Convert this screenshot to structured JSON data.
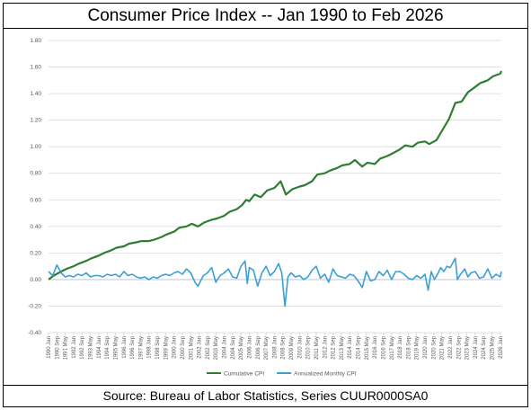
{
  "title": "Consumer Price Index -- Jan 1990 to Feb 2026",
  "source": "Source: Bureau of Labor Statistics, Series CUUR0000SA0",
  "colors": {
    "cumulative": "#2e7d32",
    "monthly": "#3a9fd6",
    "grid": "#d9d9d9",
    "axis": "#bfbfbf"
  },
  "chart_data": {
    "type": "line",
    "title": "Consumer Price Index -- Jan 1990 to Feb 2026",
    "legend_position": "bottom",
    "grid": true,
    "ylim": [
      -0.4,
      1.8
    ],
    "y_ticks": [
      "-0.40",
      "-0.20",
      "0.00",
      "0.20",
      "0.40",
      "0.60",
      "0.80",
      "1.00",
      "1.20",
      "1.40",
      "1.60",
      "1.80"
    ],
    "x_range": [
      "1990-01",
      "2026-02"
    ],
    "x_tick_labels": [
      "1990 Jan",
      "1990 Sep",
      "1991 May",
      "1992 Jan",
      "1992 Sep",
      "1993 May",
      "1994 Jan",
      "1994 Sep",
      "1995 May",
      "1996 Jan",
      "1996 Sep",
      "1997 May",
      "1998 Jan",
      "1998 Sep",
      "1999 May",
      "2000 Jan",
      "2000 Sep",
      "2001 May",
      "2002 Jan",
      "2002 Sep",
      "2003 May",
      "2004 Jan",
      "2004 Sep",
      "2005 May",
      "2006 Jan",
      "2006 Sep",
      "2007 May",
      "2008 Jan",
      "2008 Sep",
      "2009 May",
      "2010 Jan",
      "2010 Sep",
      "2011 May",
      "2012 Jan",
      "2012 Sep",
      "2013 May",
      "2014 Jan",
      "2014 Sep",
      "2015 May",
      "2016 Jan",
      "2016 Sep",
      "2017 May",
      "2018 Jan",
      "2018 Sep",
      "2019 May",
      "2020 Jan",
      "2020 Sep",
      "2021 May",
      "2022 Jan",
      "2022 Sep",
      "2023 May",
      "2024 Jan",
      "2024 Sep",
      "2025 May",
      "2026 Jan"
    ],
    "series": [
      {
        "name": "Cumulative CPI",
        "color": "#2e7d32",
        "points": [
          [
            "1990-01",
            0.0
          ],
          [
            "1990-06",
            0.03
          ],
          [
            "1991-01",
            0.06
          ],
          [
            "1991-06",
            0.08
          ],
          [
            "1992-01",
            0.1
          ],
          [
            "1992-06",
            0.12
          ],
          [
            "1993-01",
            0.14
          ],
          [
            "1993-06",
            0.16
          ],
          [
            "1994-01",
            0.18
          ],
          [
            "1994-06",
            0.2
          ],
          [
            "1995-01",
            0.22
          ],
          [
            "1995-06",
            0.24
          ],
          [
            "1996-01",
            0.25
          ],
          [
            "1996-06",
            0.27
          ],
          [
            "1997-01",
            0.28
          ],
          [
            "1997-06",
            0.29
          ],
          [
            "1998-01",
            0.29
          ],
          [
            "1998-06",
            0.3
          ],
          [
            "1999-01",
            0.32
          ],
          [
            "1999-06",
            0.34
          ],
          [
            "2000-01",
            0.36
          ],
          [
            "2000-06",
            0.39
          ],
          [
            "2001-01",
            0.4
          ],
          [
            "2001-06",
            0.42
          ],
          [
            "2001-12",
            0.4
          ],
          [
            "2002-06",
            0.43
          ],
          [
            "2003-01",
            0.45
          ],
          [
            "2003-06",
            0.46
          ],
          [
            "2004-01",
            0.48
          ],
          [
            "2004-06",
            0.51
          ],
          [
            "2005-01",
            0.53
          ],
          [
            "2005-06",
            0.56
          ],
          [
            "2005-10",
            0.6
          ],
          [
            "2006-01",
            0.59
          ],
          [
            "2006-06",
            0.64
          ],
          [
            "2006-12",
            0.62
          ],
          [
            "2007-06",
            0.67
          ],
          [
            "2008-01",
            0.69
          ],
          [
            "2008-07",
            0.74
          ],
          [
            "2008-12",
            0.64
          ],
          [
            "2009-06",
            0.68
          ],
          [
            "2010-01",
            0.7
          ],
          [
            "2010-06",
            0.71
          ],
          [
            "2011-01",
            0.74
          ],
          [
            "2011-06",
            0.79
          ],
          [
            "2012-01",
            0.8
          ],
          [
            "2012-06",
            0.82
          ],
          [
            "2013-01",
            0.84
          ],
          [
            "2013-06",
            0.86
          ],
          [
            "2014-01",
            0.87
          ],
          [
            "2014-06",
            0.9
          ],
          [
            "2015-01",
            0.85
          ],
          [
            "2015-06",
            0.88
          ],
          [
            "2016-01",
            0.87
          ],
          [
            "2016-06",
            0.91
          ],
          [
            "2017-01",
            0.93
          ],
          [
            "2017-06",
            0.95
          ],
          [
            "2018-01",
            0.98
          ],
          [
            "2018-06",
            1.01
          ],
          [
            "2019-01",
            1.0
          ],
          [
            "2019-06",
            1.03
          ],
          [
            "2020-01",
            1.04
          ],
          [
            "2020-05",
            1.02
          ],
          [
            "2020-12",
            1.05
          ],
          [
            "2021-06",
            1.13
          ],
          [
            "2021-12",
            1.21
          ],
          [
            "2022-06",
            1.33
          ],
          [
            "2022-12",
            1.34
          ],
          [
            "2023-06",
            1.41
          ],
          [
            "2024-01",
            1.45
          ],
          [
            "2024-06",
            1.48
          ],
          [
            "2025-01",
            1.5
          ],
          [
            "2025-06",
            1.53
          ],
          [
            "2026-01",
            1.55
          ],
          [
            "2026-02",
            1.57
          ]
        ]
      },
      {
        "name": "Annualized Monthly CPI",
        "color": "#3a9fd6",
        "points": [
          [
            "1990-01",
            0.06
          ],
          [
            "1990-05",
            0.03
          ],
          [
            "1990-09",
            0.11
          ],
          [
            "1991-01",
            0.05
          ],
          [
            "1991-05",
            0.02
          ],
          [
            "1991-09",
            0.03
          ],
          [
            "1992-01",
            0.02
          ],
          [
            "1992-05",
            0.04
          ],
          [
            "1992-09",
            0.03
          ],
          [
            "1993-01",
            0.05
          ],
          [
            "1993-05",
            0.02
          ],
          [
            "1993-09",
            0.03
          ],
          [
            "1994-01",
            0.03
          ],
          [
            "1994-05",
            0.02
          ],
          [
            "1994-09",
            0.04
          ],
          [
            "1995-01",
            0.03
          ],
          [
            "1995-05",
            0.04
          ],
          [
            "1995-09",
            0.02
          ],
          [
            "1996-01",
            0.06
          ],
          [
            "1996-05",
            0.03
          ],
          [
            "1996-09",
            0.04
          ],
          [
            "1997-01",
            0.02
          ],
          [
            "1997-05",
            0.01
          ],
          [
            "1997-09",
            0.02
          ],
          [
            "1998-01",
            0.0
          ],
          [
            "1998-05",
            0.02
          ],
          [
            "1998-09",
            0.01
          ],
          [
            "1999-01",
            0.03
          ],
          [
            "1999-05",
            0.04
          ],
          [
            "1999-09",
            0.03
          ],
          [
            "2000-01",
            0.05
          ],
          [
            "2000-05",
            0.06
          ],
          [
            "2000-09",
            0.04
          ],
          [
            "2001-01",
            0.08
          ],
          [
            "2001-05",
            0.05
          ],
          [
            "2001-09",
            -0.02
          ],
          [
            "2001-12",
            -0.05
          ],
          [
            "2002-05",
            0.03
          ],
          [
            "2002-09",
            0.05
          ],
          [
            "2003-01",
            0.09
          ],
          [
            "2003-05",
            -0.02
          ],
          [
            "2003-09",
            0.03
          ],
          [
            "2004-01",
            0.05
          ],
          [
            "2004-05",
            0.08
          ],
          [
            "2004-09",
            0.02
          ],
          [
            "2005-01",
            0.01
          ],
          [
            "2005-05",
            0.1
          ],
          [
            "2005-09",
            0.14
          ],
          [
            "2005-11",
            -0.03
          ],
          [
            "2006-01",
            0.09
          ],
          [
            "2006-05",
            0.07
          ],
          [
            "2006-09",
            -0.05
          ],
          [
            "2007-01",
            0.05
          ],
          [
            "2007-05",
            0.1
          ],
          [
            "2007-09",
            0.03
          ],
          [
            "2008-01",
            0.06
          ],
          [
            "2008-05",
            0.12
          ],
          [
            "2008-08",
            0.05
          ],
          [
            "2008-11",
            -0.2
          ],
          [
            "2009-02",
            0.02
          ],
          [
            "2009-05",
            0.05
          ],
          [
            "2009-09",
            0.02
          ],
          [
            "2010-01",
            0.03
          ],
          [
            "2010-05",
            0.0
          ],
          [
            "2010-09",
            0.02
          ],
          [
            "2011-01",
            0.07
          ],
          [
            "2011-05",
            0.1
          ],
          [
            "2011-09",
            0.01
          ],
          [
            "2012-01",
            0.04
          ],
          [
            "2012-05",
            -0.02
          ],
          [
            "2012-09",
            0.08
          ],
          [
            "2013-01",
            0.03
          ],
          [
            "2013-05",
            0.02
          ],
          [
            "2013-09",
            0.01
          ],
          [
            "2014-01",
            0.04
          ],
          [
            "2014-05",
            0.03
          ],
          [
            "2014-09",
            -0.01
          ],
          [
            "2015-01",
            -0.06
          ],
          [
            "2015-05",
            0.06
          ],
          [
            "2015-09",
            -0.01
          ],
          [
            "2016-01",
            0.0
          ],
          [
            "2016-05",
            0.06
          ],
          [
            "2016-09",
            0.03
          ],
          [
            "2017-01",
            0.07
          ],
          [
            "2017-05",
            0.0
          ],
          [
            "2017-09",
            0.06
          ],
          [
            "2018-01",
            0.06
          ],
          [
            "2018-05",
            0.04
          ],
          [
            "2018-09",
            0.01
          ],
          [
            "2019-01",
            0.0
          ],
          [
            "2019-05",
            0.03
          ],
          [
            "2019-09",
            0.01
          ],
          [
            "2020-01",
            0.04
          ],
          [
            "2020-04",
            -0.08
          ],
          [
            "2020-07",
            0.06
          ],
          [
            "2020-10",
            0.0
          ],
          [
            "2021-01",
            0.04
          ],
          [
            "2021-04",
            0.09
          ],
          [
            "2021-07",
            0.06
          ],
          [
            "2021-10",
            0.1
          ],
          [
            "2022-01",
            0.09
          ],
          [
            "2022-06",
            0.16
          ],
          [
            "2022-08",
            0.0
          ],
          [
            "2022-11",
            0.04
          ],
          [
            "2023-03",
            0.08
          ],
          [
            "2023-06",
            0.02
          ],
          [
            "2023-09",
            0.05
          ],
          [
            "2024-01",
            0.06
          ],
          [
            "2024-05",
            0.01
          ],
          [
            "2024-09",
            0.02
          ],
          [
            "2025-01",
            0.08
          ],
          [
            "2025-05",
            0.01
          ],
          [
            "2025-09",
            0.04
          ],
          [
            "2026-01",
            0.02
          ],
          [
            "2026-02",
            0.06
          ]
        ]
      }
    ]
  }
}
